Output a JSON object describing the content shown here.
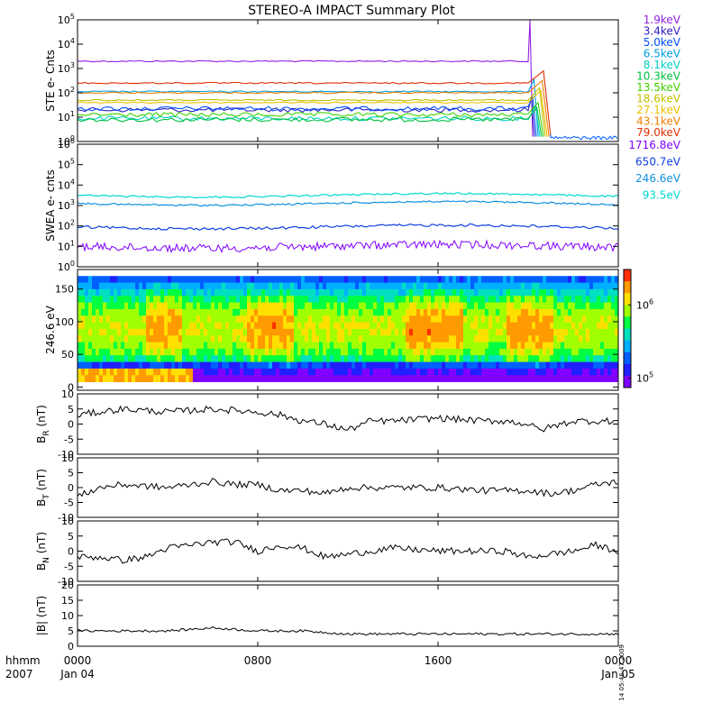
{
  "title": "STEREO-A IMPACT Summary Plot",
  "side_stamp": "Mon Dec 14 05:46:47 2009",
  "x_axis": {
    "corner_labels": [
      "hhmm",
      "2007"
    ],
    "ticks": [
      {
        "hour": 0,
        "time": "0000",
        "date": "Jan 04"
      },
      {
        "hour": 8,
        "time": "0800",
        "date": ""
      },
      {
        "hour": 16,
        "time": "1600",
        "date": ""
      },
      {
        "hour": 24,
        "time": "0000",
        "date": "Jan 05"
      }
    ],
    "range_hours": [
      0,
      24
    ]
  },
  "colorbar": {
    "colors": [
      "#ff3000",
      "#ff9a00",
      "#ffe000",
      "#a0ff00",
      "#00ff40",
      "#00e0c0",
      "#00b0ff",
      "#0060ff",
      "#2020ff",
      "#8000ff"
    ],
    "labels": [
      {
        "label": "10",
        "exp": "6",
        "level": 0.7
      },
      {
        "label": "10",
        "exp": "5",
        "level": 0.08
      }
    ]
  },
  "chart_data": [
    {
      "type": "line",
      "ylabel": "STE e- Cnts",
      "yscale": "log",
      "ylim_exp": [
        0,
        5
      ],
      "yticks": [
        {
          "label": "10",
          "exp": "0",
          "v": 0
        },
        {
          "label": "10",
          "exp": "1",
          "v": 1
        },
        {
          "label": "10",
          "exp": "2",
          "v": 2
        },
        {
          "label": "10",
          "exp": "3",
          "v": 3
        },
        {
          "label": "10",
          "exp": "4",
          "v": 4
        },
        {
          "label": "10",
          "exp": "5",
          "v": 5
        }
      ],
      "dropout_hour": 20.0,
      "legend": [
        {
          "name": "1.9keV",
          "color": "#9020e0"
        },
        {
          "name": "3.4keV",
          "color": "#3020c0"
        },
        {
          "name": "5.0keV",
          "color": "#0050ff"
        },
        {
          "name": "6.5keV",
          "color": "#00a0e0"
        },
        {
          "name": "8.1keV",
          "color": "#00d0c0"
        },
        {
          "name": "10.3keV",
          "color": "#00c040"
        },
        {
          "name": "13.5keV",
          "color": "#40d000"
        },
        {
          "name": "18.6keV",
          "color": "#c0c000"
        },
        {
          "name": "27.1keV",
          "color": "#f0c000"
        },
        {
          "name": "43.1keV",
          "color": "#f08000"
        },
        {
          "name": "79.0keV",
          "color": "#e03000"
        }
      ],
      "series": [
        {
          "color": "#9020e0",
          "log10_level": 3.3
        },
        {
          "color": "#3020c0",
          "log10_level": 1.3
        },
        {
          "color": "#0050ff",
          "log10_level": 1.35
        },
        {
          "color": "#00a0e0",
          "log10_level": 2.05
        },
        {
          "color": "#00d0c0",
          "log10_level": 0.95
        },
        {
          "color": "#00c040",
          "log10_level": 0.9
        },
        {
          "color": "#40d000",
          "log10_level": 1.1
        },
        {
          "color": "#c0c000",
          "log10_level": 1.7
        },
        {
          "color": "#f0c000",
          "log10_level": 1.6
        },
        {
          "color": "#f08000",
          "log10_level": 2.0
        },
        {
          "color": "#e03000",
          "log10_level": 2.4
        }
      ]
    },
    {
      "type": "line",
      "ylabel": "SWEA e- cnts",
      "yscale": "log",
      "ylim_exp": [
        0,
        6
      ],
      "yticks": [
        {
          "label": "10",
          "exp": "0",
          "v": 0
        },
        {
          "label": "10",
          "exp": "1",
          "v": 1
        },
        {
          "label": "10",
          "exp": "2",
          "v": 2
        },
        {
          "label": "10",
          "exp": "3",
          "v": 3
        },
        {
          "label": "10",
          "exp": "4",
          "v": 4
        },
        {
          "label": "10",
          "exp": "5",
          "v": 5
        },
        {
          "label": "10",
          "exp": "6",
          "v": 6
        }
      ],
      "legend": [
        {
          "name": "1716.8eV",
          "color": "#8000ff"
        },
        {
          "name": "650.7eV",
          "color": "#1040e0"
        },
        {
          "name": "246.6eV",
          "color": "#1090e0"
        },
        {
          "name": "93.5eV",
          "color": "#00d8d0"
        }
      ],
      "series": [
        {
          "name": "1716.8eV",
          "color": "#8000ff",
          "log10_level": 1.0
        },
        {
          "name": "650.7eV",
          "color": "#1040e0",
          "log10_level": 1.95
        },
        {
          "name": "246.6eV",
          "color": "#1090e0",
          "log10_level": 3.1
        },
        {
          "name": "93.5eV",
          "color": "#00d8d0",
          "log10_level": 3.5
        }
      ]
    },
    {
      "type": "heatmap",
      "ylabel": "246.6 eV",
      "ylim": [
        -5,
        180
      ],
      "yticks": [
        {
          "label": "0",
          "v": 0
        },
        {
          "label": "50",
          "v": 50
        },
        {
          "label": "100",
          "v": 100
        },
        {
          "label": "150",
          "v": 150
        }
      ]
    },
    {
      "type": "line",
      "ylabel": "B",
      "ysub": "R",
      "yunit": " (nT)",
      "ylim": [
        -10,
        10
      ],
      "yticks": [
        {
          "label": "10",
          "v": 10
        },
        {
          "label": "5",
          "v": 5
        },
        {
          "label": "0",
          "v": 0
        },
        {
          "label": "-5",
          "v": -5
        },
        {
          "label": "-10",
          "v": -10
        }
      ],
      "x": [
        0,
        2,
        4,
        6,
        8,
        9,
        10,
        11,
        12,
        13,
        14,
        16,
        18,
        19,
        20,
        20.5,
        21,
        22,
        23,
        24
      ],
      "y": [
        3,
        5,
        4,
        5,
        4,
        3,
        1,
        0,
        -2,
        1,
        1,
        2,
        1,
        1,
        0,
        -2,
        -1,
        1,
        1,
        1
      ]
    },
    {
      "type": "line",
      "ylabel": "B",
      "ysub": "T",
      "yunit": " (nT)",
      "ylim": [
        -10,
        10
      ],
      "yticks": [
        {
          "label": "10",
          "v": 10
        },
        {
          "label": "5",
          "v": 5
        },
        {
          "label": "0",
          "v": 0
        },
        {
          "label": "-5",
          "v": -5
        },
        {
          "label": "-10",
          "v": -10
        }
      ],
      "x": [
        0,
        1,
        2,
        4,
        6,
        7,
        8,
        9,
        10,
        11,
        12,
        14,
        16,
        18,
        19,
        20,
        21,
        22,
        23,
        24
      ],
      "y": [
        -3,
        0,
        1,
        0,
        2,
        1,
        1,
        -1,
        -1,
        -2,
        0,
        0,
        0,
        -1,
        -1,
        -1,
        -2,
        -1,
        1,
        2
      ]
    },
    {
      "type": "line",
      "ylabel": "B",
      "ysub": "N",
      "yunit": " (nT)",
      "ylim": [
        -10,
        10
      ],
      "yticks": [
        {
          "label": "10",
          "v": 10
        },
        {
          "label": "5",
          "v": 5
        },
        {
          "label": "0",
          "v": 0
        },
        {
          "label": "-5",
          "v": -5
        },
        {
          "label": "-10",
          "v": -10
        }
      ],
      "x": [
        0,
        1,
        2,
        3,
        4,
        6,
        7,
        8,
        9,
        10,
        11,
        12,
        13,
        14,
        16,
        18,
        19,
        20,
        21,
        22,
        23,
        24
      ],
      "y": [
        -2,
        -2,
        -3,
        -2,
        1,
        3,
        3,
        0,
        2,
        1,
        -2,
        -1,
        0,
        1,
        0,
        0,
        0,
        -2,
        -1,
        0,
        2,
        0
      ]
    },
    {
      "type": "line",
      "ylabel": "|B| (nT)",
      "ylim": [
        0,
        20
      ],
      "yticks": [
        {
          "label": "20",
          "v": 20
        },
        {
          "label": "15",
          "v": 15
        },
        {
          "label": "10",
          "v": 10
        },
        {
          "label": "5",
          "v": 5
        },
        {
          "label": "0",
          "v": 0
        }
      ],
      "x": [
        0,
        2,
        4,
        6,
        8,
        10,
        12,
        14,
        16,
        18,
        20,
        22,
        24
      ],
      "y": [
        5,
        5,
        5,
        6,
        5,
        5,
        4,
        4,
        4,
        4,
        4,
        4,
        4
      ]
    }
  ]
}
